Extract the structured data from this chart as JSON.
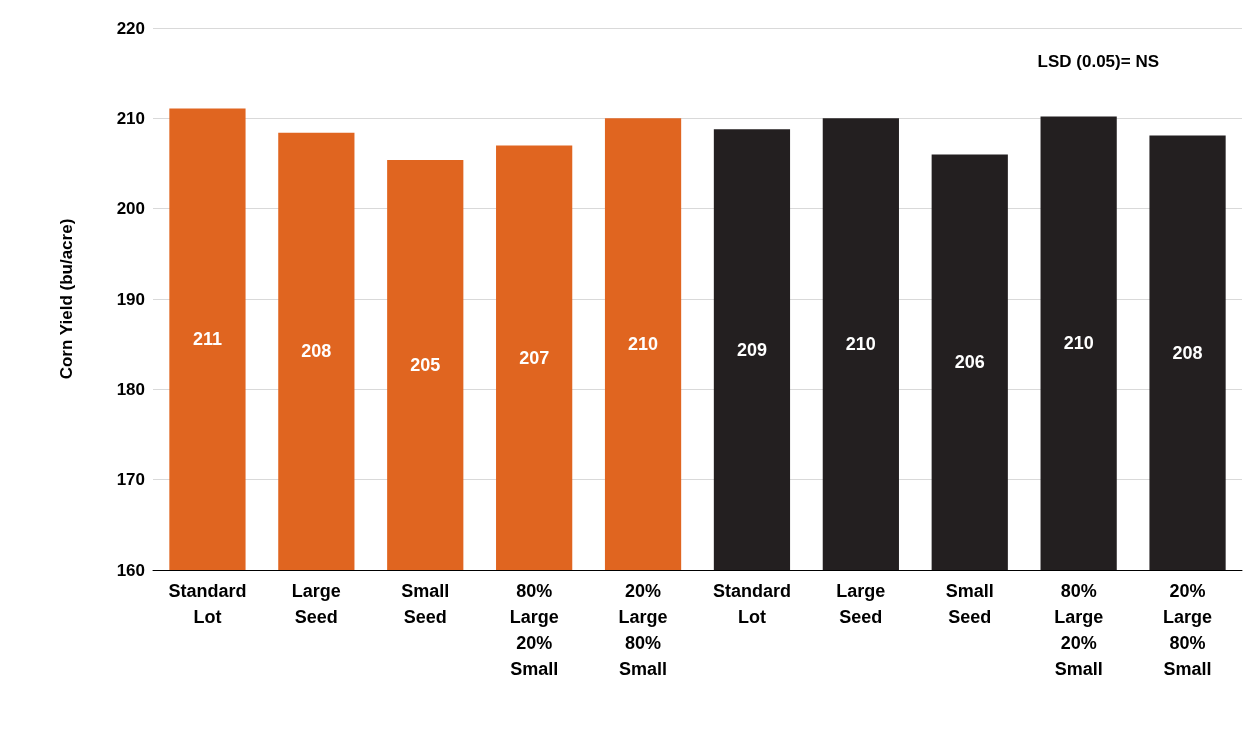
{
  "chart_data": {
    "type": "bar",
    "ylabel": "Corn Yield (bu/acre)",
    "categories": [
      "Standard\nLot",
      "Large\nSeed",
      "Small\nSeed",
      "80%\nLarge\n20%\nSmall",
      "20%\nLarge\n80%\nSmall",
      "Standard\nLot",
      "Large\nSeed",
      "Small\nSeed",
      "80%\nLarge\n20%\nSmall",
      "20%\nLarge\n80%\nSmall"
    ],
    "values": [
      211.1,
      208.4,
      205.4,
      207,
      210,
      208.8,
      210,
      206,
      210.2,
      208.1
    ],
    "value_labels": [
      "211",
      "208",
      "205",
      "207",
      "210",
      "209",
      "210",
      "206",
      "210",
      "208"
    ],
    "colors": [
      "#e06520",
      "#e06520",
      "#e06520",
      "#e06520",
      "#e06520",
      "#231f20",
      "#231f20",
      "#231f20",
      "#231f20",
      "#231f20"
    ],
    "ylim": [
      160,
      220
    ],
    "yticks": [
      160,
      170,
      180,
      190,
      200,
      210,
      220
    ],
    "grid": "y",
    "annotations": [
      "LSD (0.05)= NS"
    ]
  }
}
